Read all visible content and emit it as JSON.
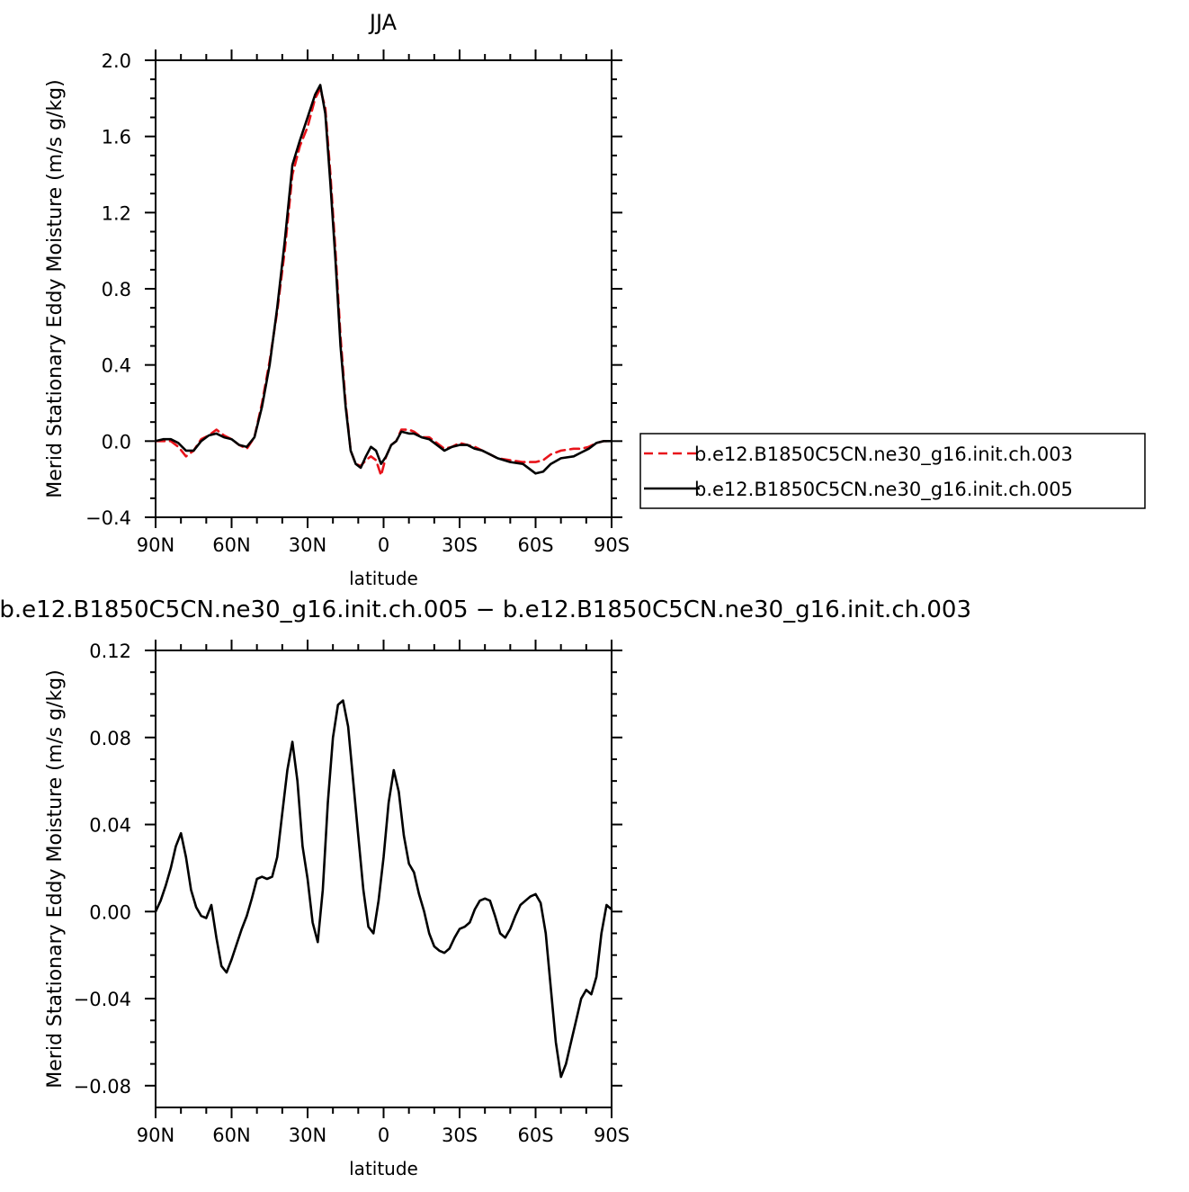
{
  "chart_data": [
    {
      "type": "line",
      "title": "JJA",
      "xlabel": "latitude",
      "ylabel": "Merid Stationary Eddy Moisture (m/s g/kg)",
      "xlim": [
        90,
        -90
      ],
      "ylim": [
        -0.4,
        2.0
      ],
      "xticks": [
        90,
        60,
        30,
        0,
        -30,
        -60,
        -90
      ],
      "xtick_labels": [
        "90N",
        "60N",
        "30N",
        "0",
        "30S",
        "60S",
        "90S"
      ],
      "yticks": [
        -0.4,
        0.0,
        0.4,
        0.8,
        1.2,
        1.6,
        2.0
      ],
      "ytick_labels": [
        "−0.4",
        "0.0",
        "0.4",
        "0.8",
        "1.2",
        "1.6",
        "2.0"
      ],
      "legend_position": "right",
      "series": [
        {
          "name": "b.e12.B1850C5CN.ne30_g16.init.ch.003",
          "color": "#e8141b",
          "dash": "dashed",
          "x": [
            90,
            87,
            84,
            81,
            78,
            75,
            72,
            69,
            66,
            63,
            60,
            57,
            54,
            51,
            48,
            45,
            42,
            39,
            36,
            33,
            30,
            27,
            25,
            23,
            21,
            19,
            17,
            15,
            13,
            11,
            9,
            7,
            5,
            3,
            1,
            -1,
            -3,
            -5,
            -7,
            -10,
            -12,
            -15,
            -18,
            -21,
            -24,
            -27,
            -30,
            -33,
            -36,
            -39,
            -42,
            -45,
            -50,
            -55,
            -60,
            -63,
            -66,
            -70,
            -75,
            -78,
            -81,
            -84,
            -87,
            -90
          ],
          "y": [
            0.0,
            0.0,
            0.0,
            -0.03,
            -0.08,
            -0.05,
            0.01,
            0.03,
            0.06,
            0.03,
            0.01,
            -0.02,
            -0.04,
            0.02,
            0.2,
            0.42,
            0.68,
            1.0,
            1.4,
            1.55,
            1.65,
            1.8,
            1.85,
            1.75,
            1.4,
            1.0,
            0.55,
            0.2,
            -0.05,
            -0.12,
            -0.13,
            -0.1,
            -0.08,
            -0.1,
            -0.18,
            -0.08,
            -0.02,
            0.0,
            0.06,
            0.06,
            0.05,
            0.02,
            0.02,
            -0.01,
            -0.04,
            -0.03,
            -0.01,
            -0.02,
            -0.03,
            -0.05,
            -0.07,
            -0.09,
            -0.1,
            -0.11,
            -0.11,
            -0.1,
            -0.07,
            -0.05,
            -0.04,
            -0.04,
            -0.03,
            -0.01,
            0.0,
            0.0
          ]
        },
        {
          "name": "b.e12.B1850C5CN.ne30_g16.init.ch.005",
          "color": "#000000",
          "dash": "solid",
          "x": [
            90,
            87,
            84,
            81,
            78,
            75,
            72,
            69,
            66,
            63,
            60,
            57,
            54,
            51,
            48,
            45,
            42,
            39,
            36,
            33,
            30,
            27,
            25,
            23,
            21,
            19,
            17,
            15,
            13,
            11,
            9,
            7,
            5,
            3,
            1,
            -1,
            -3,
            -5,
            -7,
            -10,
            -12,
            -15,
            -18,
            -21,
            -24,
            -27,
            -30,
            -33,
            -36,
            -39,
            -42,
            -45,
            -50,
            -55,
            -60,
            -63,
            -66,
            -70,
            -75,
            -78,
            -81,
            -84,
            -87,
            -90
          ],
          "y": [
            0.0,
            0.01,
            0.01,
            -0.01,
            -0.05,
            -0.05,
            0.0,
            0.03,
            0.04,
            0.02,
            0.01,
            -0.02,
            -0.03,
            0.02,
            0.18,
            0.4,
            0.7,
            1.05,
            1.45,
            1.58,
            1.7,
            1.82,
            1.87,
            1.72,
            1.35,
            0.95,
            0.5,
            0.18,
            -0.05,
            -0.12,
            -0.14,
            -0.08,
            -0.03,
            -0.05,
            -0.12,
            -0.08,
            -0.02,
            0.0,
            0.05,
            0.04,
            0.04,
            0.02,
            0.01,
            -0.02,
            -0.05,
            -0.03,
            -0.02,
            -0.02,
            -0.04,
            -0.05,
            -0.07,
            -0.09,
            -0.11,
            -0.12,
            -0.17,
            -0.16,
            -0.12,
            -0.09,
            -0.08,
            -0.06,
            -0.04,
            -0.01,
            0.0,
            0.0
          ]
        }
      ]
    },
    {
      "type": "line",
      "title": "b.e12.B1850C5CN.ne30_g16.init.ch.005 − b.e12.B1850C5CN.ne30_g16.init.ch.003",
      "xlabel": "latitude",
      "ylabel": "Merid Stationary Eddy Moisture (m/s g/kg)",
      "xlim": [
        90,
        -90
      ],
      "ylim": [
        -0.09,
        0.12
      ],
      "xticks": [
        90,
        60,
        30,
        0,
        -30,
        -60,
        -90
      ],
      "xtick_labels": [
        "90N",
        "60N",
        "30N",
        "0",
        "30S",
        "60S",
        "90S"
      ],
      "yticks": [
        -0.08,
        -0.04,
        0.0,
        0.04,
        0.08,
        0.12
      ],
      "ytick_labels": [
        "−0.08",
        "−0.04",
        "0.00",
        "0.04",
        "0.08",
        "0.12"
      ],
      "series": [
        {
          "color": "#000000",
          "dash": "solid",
          "x": [
            90,
            88,
            86,
            84,
            82,
            80,
            78,
            76,
            74,
            72,
            70,
            68,
            66,
            64,
            62,
            60,
            58,
            56,
            54,
            52,
            50,
            48,
            46,
            44,
            42,
            40,
            38,
            36,
            34,
            32,
            30,
            28,
            26,
            24,
            22,
            20,
            18,
            16,
            14,
            12,
            10,
            8,
            6,
            4,
            2,
            0,
            -2,
            -4,
            -6,
            -8,
            -10,
            -12,
            -14,
            -16,
            -18,
            -20,
            -22,
            -24,
            -26,
            -28,
            -30,
            -32,
            -34,
            -36,
            -38,
            -40,
            -42,
            -44,
            -46,
            -48,
            -50,
            -52,
            -54,
            -56,
            -58,
            -60,
            -62,
            -64,
            -66,
            -68,
            -70,
            -72,
            -74,
            -76,
            -78,
            -80,
            -82,
            -84,
            -86,
            -88,
            -90
          ],
          "y": [
            0.0,
            0.005,
            0.012,
            0.02,
            0.03,
            0.036,
            0.025,
            0.01,
            0.002,
            -0.002,
            -0.003,
            0.003,
            -0.012,
            -0.025,
            -0.028,
            -0.022,
            -0.015,
            -0.008,
            -0.002,
            0.006,
            0.015,
            0.016,
            0.015,
            0.016,
            0.025,
            0.045,
            0.065,
            0.078,
            0.06,
            0.03,
            0.015,
            -0.005,
            -0.014,
            0.01,
            0.05,
            0.08,
            0.095,
            0.097,
            0.085,
            0.06,
            0.035,
            0.01,
            -0.007,
            -0.01,
            0.005,
            0.025,
            0.05,
            0.065,
            0.055,
            0.035,
            0.022,
            0.018,
            0.008,
            0.0,
            -0.01,
            -0.016,
            -0.018,
            -0.019,
            -0.017,
            -0.012,
            -0.008,
            -0.007,
            -0.005,
            0.001,
            0.005,
            0.006,
            0.005,
            -0.002,
            -0.01,
            -0.012,
            -0.008,
            -0.002,
            0.003,
            0.005,
            0.007,
            0.008,
            0.004,
            -0.01,
            -0.035,
            -0.06,
            -0.076,
            -0.07,
            -0.06,
            -0.05,
            -0.04,
            -0.036,
            -0.038,
            -0.03,
            -0.01,
            0.003,
            0.001
          ]
        }
      ]
    }
  ]
}
